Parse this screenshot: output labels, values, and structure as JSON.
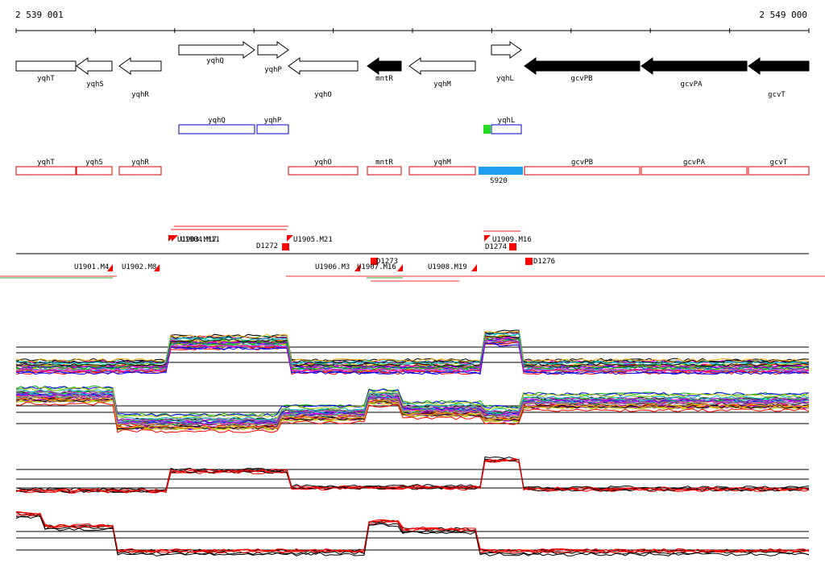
{
  "coordinates": {
    "start": "2 539 001",
    "end": "2 549 000"
  },
  "genes": [
    {
      "label": "yqhT",
      "dir": "none",
      "filled": false
    },
    {
      "label": "yqhS",
      "dir": "left",
      "filled": false
    },
    {
      "label": "yqhR",
      "dir": "left",
      "filled": false
    },
    {
      "label": "yqhQ",
      "dir": "right",
      "filled": false
    },
    {
      "label": "yqhP",
      "dir": "right",
      "filled": false
    },
    {
      "label": "yqhO",
      "dir": "left",
      "filled": false
    },
    {
      "label": "mntR",
      "dir": "left",
      "filled": true
    },
    {
      "label": "yqhM",
      "dir": "left",
      "filled": false
    },
    {
      "label": "yqhL",
      "dir": "right",
      "filled": false
    },
    {
      "label": "gcvPB",
      "dir": "left",
      "filled": true
    },
    {
      "label": "gcvPA",
      "dir": "left",
      "filled": true
    },
    {
      "label": "gcvT",
      "dir": "left",
      "filled": true
    }
  ],
  "forward_features": [
    "yqhQ",
    "yqhP",
    "yqhL"
  ],
  "reverse_features": [
    "yqhT",
    "yqhS",
    "yqhR",
    "yqhO",
    "mntR",
    "yqhM",
    "gcvPB",
    "gcvPA",
    "gcvT"
  ],
  "small_rna": {
    "label": "S920",
    "color": "#1e9ff0"
  },
  "upshift_marker_color": "#22dd22",
  "segment_marker_color": "#ff0000",
  "feature_outline_forward": "#0000cc",
  "feature_outline_reverse": "#dd0000",
  "breakpoints": [
    "U1901.M4",
    "U1902.M8",
    "U1903.M17",
    "U1904.M11",
    "D1272",
    "U1905.M21",
    "U1906.M3",
    "D1273",
    "U1907.M16",
    "U1908.M19",
    "U1909.M16",
    "D1274",
    "D1276"
  ],
  "panel_colors": [
    "#000000",
    "#ff0000",
    "#00aa00",
    "#0000ff",
    "#ff00ff",
    "#00bbbb",
    "#ffaa00",
    "#8800cc",
    "#888888",
    "#aacc00"
  ]
}
